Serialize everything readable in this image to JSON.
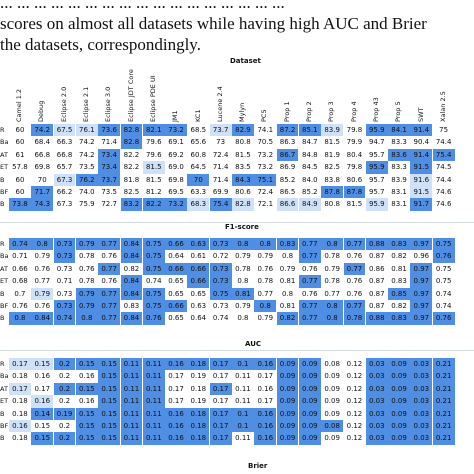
{
  "intro_lines": [
    "... ... ... ... ... ... ... ... ... ... ... ... ... ... ... ... ...",
    "scores on almost all datasets while having high AUC and Brier",
    "the datasets, correspondingly."
  ],
  "axis_title": "Dataset",
  "datasets": [
    "Camel 1.2",
    "Debug",
    "Eclipse 2.0",
    "Eclipse 2.1",
    "Eclipse 3.0",
    "Eclipse JDT Core",
    "Eclipse PDE UI",
    "JM1",
    "KC1",
    "Lucene 2.4",
    "Mylyn",
    "PC5",
    "Prop 1",
    "Prop 2",
    "Prop 3",
    "Prop 4",
    "Prop 43",
    "Prop 5",
    "SWT",
    "Xalan 2.5"
  ],
  "colors": {
    "strong": "#4f8ee3",
    "medium": "#8db7ee",
    "light": "#cfe1f8",
    "none": "#ffffff"
  },
  "sections": [
    {
      "metric": "F1-score",
      "rows": [
        {
          "label": "R",
          "values": [
            "60",
            "74.2",
            "67.5",
            "76.1",
            "73.6",
            "82.8",
            "82.1",
            "73.2",
            "68.5",
            "73.7",
            "82.9",
            "74.1",
            "87.2",
            "85.1",
            "83.9",
            "79.8",
            "95.9",
            "84.1",
            "91.4",
            "75"
          ]
        },
        {
          "label": "Ba",
          "values": [
            "60",
            "68.4",
            "66.3",
            "74.2",
            "71.4",
            "82.8",
            "79.6",
            "69.1",
            "65.6",
            "73",
            "80.8",
            "70.5",
            "86.3",
            "84.7",
            "81.5",
            "79.9",
            "94.7",
            "83.3",
            "90.4",
            "74.4"
          ]
        },
        {
          "label": "AT",
          "values": [
            "61",
            "66.8",
            "66.8",
            "74.2",
            "73.4",
            "82.2",
            "79.6",
            "69.2",
            "60.8",
            "72.4",
            "81.5",
            "73.2",
            "86.7",
            "84.8",
            "81.9",
            "80.4",
            "95.7",
            "83.6",
            "91.4",
            "75.4"
          ]
        },
        {
          "label": "ET",
          "values": [
            "57.8",
            "69.8",
            "65.7",
            "73.5",
            "73.4",
            "82.2",
            "81.5",
            "69.0",
            "64.5",
            "71.4",
            "83.5",
            "73.2",
            "86.9",
            "84.5",
            "82.5",
            "79.8",
            "95.9",
            "83.3",
            "91.5",
            "74.5"
          ]
        },
        {
          "label": "B",
          "values": [
            "60",
            "70",
            "67.3",
            "76.2",
            "73.7",
            "81.8",
            "81.5",
            "69.8",
            "70",
            "71.4",
            "84.3",
            "75.1",
            "85.2",
            "84.0",
            "83.8",
            "80.6",
            "95.7",
            "83.9",
            "91.6",
            "74.4"
          ]
        },
        {
          "label": "BF",
          "values": [
            "60",
            "71.7",
            "66.2",
            "74.0",
            "73.5",
            "82.5",
            "81.2",
            "69.5",
            "63.3",
            "69.9",
            "80.6",
            "72.4",
            "86.5",
            "85.2",
            "87.8",
            "87.8",
            "95.7",
            "83.1",
            "91.5",
            "74.6"
          ]
        },
        {
          "label": "B",
          "values": [
            "73.8",
            "74.3",
            "67.3",
            "75.9",
            "72.7",
            "83.2",
            "82.2",
            "73.2",
            "68.3",
            "75.4",
            "82.8",
            "72.1",
            "86.6",
            "84.9",
            "80.8",
            "81.5",
            "95.9",
            "83.1",
            "91.7",
            "74.6"
          ]
        }
      ]
    },
    {
      "metric": "AUC",
      "rows": [
        {
          "label": "R",
          "values": [
            "0.74",
            "0.8",
            "0.73",
            "0.79",
            "0.77",
            "0.84",
            "0.75",
            "0.66",
            "0.63",
            "0.73",
            "0.8",
            "0.8",
            "0.83",
            "0.77",
            "0.8",
            "0.77",
            "0.88",
            "0.83",
            "0.97",
            "0.75"
          ]
        },
        {
          "label": "Ba",
          "values": [
            "0.71",
            "0.79",
            "0.73",
            "0.78",
            "0.76",
            "0.84",
            "0.75",
            "0.64",
            "0.61",
            "0.72",
            "0.79",
            "0.79",
            "0.8",
            "0.77",
            "0.78",
            "0.76",
            "0.87",
            "0.82",
            "0.96",
            "0.76"
          ]
        },
        {
          "label": "AT",
          "values": [
            "0.66",
            "0.76",
            "0.73",
            "0.76",
            "0.77",
            "0.82",
            "0.75",
            "0.66",
            "0.66",
            "0.73",
            "0.78",
            "0.76",
            "0.79",
            "0.76",
            "0.79",
            "0.77",
            "0.86",
            "0.81",
            "0.97",
            "0.75"
          ]
        },
        {
          "label": "ET",
          "values": [
            "0.68",
            "0.77",
            "0.71",
            "0.78",
            "0.76",
            "0.84",
            "0.74",
            "0.65",
            "0.66",
            "0.73",
            "0.8",
            "0.78",
            "0.81",
            "0.77",
            "0.78",
            "0.76",
            "0.87",
            "0.83",
            "0.97",
            "0.75"
          ]
        },
        {
          "label": "B",
          "values": [
            "0.7",
            "0.79",
            "0.73",
            "0.79",
            "0.77",
            "0.84",
            "0.75",
            "0.65",
            "0.65",
            "0.75",
            "0.81",
            "0.77",
            "0.8",
            "0.76",
            "0.77",
            "0.76",
            "0.87",
            "0.85",
            "0.97",
            "0.74"
          ]
        },
        {
          "label": "BF",
          "values": [
            "0.76",
            "0.76",
            "0.73",
            "0.79",
            "0.77",
            "0.83",
            "0.75",
            "0.66",
            "0.63",
            "0.73",
            "0.79",
            "0.8",
            "0.81",
            "0.77",
            "0.8",
            "0.77",
            "0.87",
            "0.82",
            "0.97",
            "0.74"
          ]
        },
        {
          "label": "B",
          "values": [
            "0.8",
            "0.84",
            "0.74",
            "0.8",
            "0.77",
            "0.84",
            "0.76",
            "0.65",
            "0.64",
            "0.74",
            "0.8",
            "0.79",
            "0.82",
            "0.77",
            "0.8",
            "0.78",
            "0.88",
            "0.83",
            "0.97",
            "0.76"
          ]
        }
      ]
    },
    {
      "metric": "Brier",
      "rows": [
        {
          "label": "R",
          "values": [
            "0.17",
            "0.15",
            "0.2",
            "0.15",
            "0.15",
            "0.11",
            "0.11",
            "0.16",
            "0.18",
            "0.17",
            "0.1",
            "0.16",
            "0.09",
            "0.09",
            "0.08",
            "0.12",
            "0.03",
            "0.09",
            "0.03",
            "0.21"
          ]
        },
        {
          "label": "Ba",
          "values": [
            "0.18",
            "0.16",
            "0.2",
            "0.16",
            "0.15",
            "0.11",
            "0.11",
            "0.17",
            "0.19",
            "0.17",
            "0.11",
            "0.17",
            "0.09",
            "0.09",
            "0.09",
            "0.12",
            "0.03",
            "0.09",
            "0.03",
            "0.21"
          ]
        },
        {
          "label": "AT",
          "values": [
            "0.17",
            "0.17",
            "0.2",
            "0.15",
            "0.15",
            "0.11",
            "0.11",
            "0.17",
            "0.18",
            "0.17",
            "0.11",
            "0.16",
            "0.09",
            "0.09",
            "0.09",
            "0.12",
            "0.03",
            "0.09",
            "0.03",
            "0.21"
          ]
        },
        {
          "label": "ET",
          "values": [
            "0.18",
            "0.16",
            "0.2",
            "0.16",
            "0.15",
            "0.11",
            "0.11",
            "0.17",
            "0.19",
            "0.17",
            "0.11",
            "0.17",
            "0.09",
            "0.09",
            "0.09",
            "0.12",
            "0.03",
            "0.09",
            "0.03",
            "0.21"
          ]
        },
        {
          "label": "B",
          "values": [
            "0.18",
            "0.14",
            "0.19",
            "0.15",
            "0.15",
            "0.11",
            "0.11",
            "0.16",
            "0.18",
            "0.17",
            "0.1",
            "0.16",
            "0.09",
            "0.09",
            "0.09",
            "0.12",
            "0.03",
            "0.09",
            "0.03",
            "0.21"
          ]
        },
        {
          "label": "BF",
          "values": [
            "0.16",
            "0.15",
            "0.2",
            "0.15",
            "0.15",
            "0.11",
            "0.11",
            "0.16",
            "0.18",
            "0.17",
            "0.1",
            "0.16",
            "0.09",
            "0.09",
            "0.08",
            "0.12",
            "0.03",
            "0.09",
            "0.03",
            "0.21"
          ]
        },
        {
          "label": "B",
          "values": [
            "0.18",
            "0.15",
            "0.2",
            "0.15",
            "0.15",
            "0.11",
            "0.11",
            "0.16",
            "0.18",
            "0.17",
            "0.11",
            "0.16",
            "0.09",
            "0.09",
            "0.09",
            "0.12",
            "0.03",
            "0.09",
            "0.03",
            "0.21"
          ]
        }
      ]
    }
  ],
  "highlight_levels": [
    [
      [
        "n",
        "s",
        "l",
        "l",
        "s",
        "s",
        "s",
        "s",
        "n",
        "l",
        "s",
        "n",
        "s",
        "s",
        "l",
        "n",
        "s",
        "s",
        "s",
        "n"
      ],
      [
        "n",
        "n",
        "n",
        "n",
        "n",
        "s",
        "n",
        "n",
        "n",
        "n",
        "n",
        "n",
        "n",
        "n",
        "n",
        "n",
        "n",
        "n",
        "n",
        "n"
      ],
      [
        "n",
        "n",
        "n",
        "n",
        "s",
        "n",
        "n",
        "n",
        "n",
        "n",
        "n",
        "n",
        "s",
        "n",
        "n",
        "n",
        "n",
        "s",
        "s",
        "s"
      ],
      [
        "n",
        "n",
        "n",
        "n",
        "s",
        "n",
        "l",
        "n",
        "n",
        "n",
        "n",
        "n",
        "n",
        "n",
        "n",
        "n",
        "s",
        "n",
        "s",
        "n"
      ],
      [
        "n",
        "n",
        "l",
        "s",
        "s",
        "n",
        "n",
        "n",
        "s",
        "n",
        "s",
        "s",
        "n",
        "n",
        "n",
        "n",
        "n",
        "n",
        "l",
        "n"
      ],
      [
        "n",
        "s",
        "n",
        "n",
        "n",
        "n",
        "n",
        "n",
        "n",
        "n",
        "n",
        "n",
        "n",
        "n",
        "s",
        "s",
        "n",
        "n",
        "l",
        "n"
      ],
      [
        "s",
        "s",
        "n",
        "n",
        "n",
        "s",
        "s",
        "s",
        "l",
        "s",
        "l",
        "n",
        "l",
        "l",
        "n",
        "n",
        "l",
        "n",
        "s",
        "n"
      ]
    ],
    [
      [
        "s",
        "s",
        "s",
        "s",
        "s",
        "s",
        "s",
        "s",
        "s",
        "s",
        "s",
        "s",
        "s",
        "s",
        "s",
        "s",
        "s",
        "s",
        "s",
        "s"
      ],
      [
        "n",
        "n",
        "s",
        "n",
        "n",
        "s",
        "s",
        "n",
        "n",
        "n",
        "n",
        "n",
        "n",
        "s",
        "n",
        "n",
        "n",
        "n",
        "n",
        "s"
      ],
      [
        "n",
        "n",
        "n",
        "n",
        "s",
        "n",
        "s",
        "s",
        "s",
        "s",
        "n",
        "n",
        "n",
        "n",
        "n",
        "s",
        "n",
        "n",
        "s",
        "n"
      ],
      [
        "n",
        "n",
        "n",
        "n",
        "n",
        "s",
        "n",
        "n",
        "s",
        "s",
        "n",
        "n",
        "n",
        "s",
        "n",
        "n",
        "n",
        "n",
        "s",
        "n"
      ],
      [
        "n",
        "l",
        "n",
        "s",
        "s",
        "s",
        "s",
        "n",
        "n",
        "s",
        "s",
        "n",
        "n",
        "n",
        "n",
        "n",
        "n",
        "s",
        "s",
        "n"
      ],
      [
        "n",
        "n",
        "s",
        "s",
        "s",
        "n",
        "s",
        "s",
        "n",
        "n",
        "n",
        "s",
        "n",
        "s",
        "s",
        "s",
        "n",
        "n",
        "s",
        "n"
      ],
      [
        "s",
        "s",
        "s",
        "s",
        "s",
        "s",
        "s",
        "n",
        "n",
        "n",
        "n",
        "n",
        "s",
        "s",
        "s",
        "s",
        "s",
        "s",
        "s",
        "s"
      ]
    ],
    [
      [
        "l",
        "l",
        "s",
        "s",
        "s",
        "s",
        "s",
        "s",
        "s",
        "s",
        "s",
        "s",
        "s",
        "s",
        "n",
        "n",
        "s",
        "s",
        "s",
        "s"
      ],
      [
        "n",
        "n",
        "n",
        "n",
        "s",
        "s",
        "s",
        "n",
        "n",
        "n",
        "n",
        "n",
        "s",
        "s",
        "n",
        "n",
        "s",
        "s",
        "s",
        "s"
      ],
      [
        "l",
        "n",
        "s",
        "s",
        "s",
        "s",
        "s",
        "n",
        "n",
        "s",
        "n",
        "n",
        "s",
        "s",
        "n",
        "n",
        "s",
        "s",
        "s",
        "s"
      ],
      [
        "n",
        "l",
        "n",
        "n",
        "s",
        "s",
        "s",
        "n",
        "n",
        "n",
        "n",
        "n",
        "s",
        "s",
        "n",
        "n",
        "s",
        "s",
        "s",
        "s"
      ],
      [
        "n",
        "s",
        "s",
        "s",
        "s",
        "s",
        "s",
        "s",
        "s",
        "s",
        "s",
        "s",
        "s",
        "s",
        "n",
        "n",
        "s",
        "s",
        "s",
        "s"
      ],
      [
        "l",
        "n",
        "n",
        "s",
        "s",
        "s",
        "s",
        "s",
        "s",
        "s",
        "s",
        "s",
        "s",
        "s",
        "s",
        "n",
        "s",
        "s",
        "s",
        "s"
      ],
      [
        "n",
        "s",
        "s",
        "s",
        "s",
        "s",
        "s",
        "s",
        "s",
        "s",
        "n",
        "s",
        "s",
        "s",
        "n",
        "n",
        "s",
        "s",
        "s",
        "s"
      ]
    ]
  ]
}
